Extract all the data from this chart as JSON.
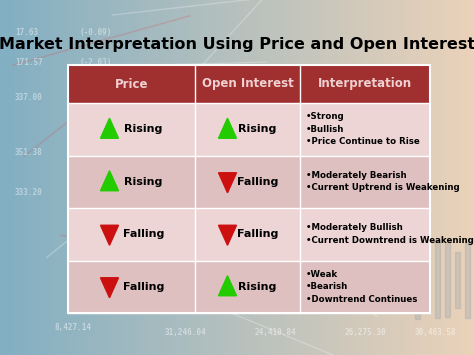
{
  "title": "Market Interpretation Using Price and Open Interest",
  "title_fontsize": 11.5,
  "title_fontweight": "bold",
  "header_bg": "#A03030",
  "header_text_color": "#F0D0D0",
  "row_bgs": [
    "#EDD5D5",
    "#DFC0C0",
    "#EDD5D5",
    "#DFC0C0"
  ],
  "col_headers": [
    "Price",
    "Open Interest",
    "Interpretation"
  ],
  "rows": [
    {
      "price_dir": "up",
      "price_color": "#22CC00",
      "oi_dir": "up",
      "oi_color": "#22CC00",
      "price_label": "Rising",
      "oi_label": "Rising",
      "interpretation": "•Strong\n•Bullish\n•Price Continue to Rise"
    },
    {
      "price_dir": "up",
      "price_color": "#22CC00",
      "oi_dir": "down",
      "oi_color": "#CC1010",
      "price_label": "Rising",
      "oi_label": "Falling",
      "interpretation": "•Moderately Bearish\n•Current Uptrend is Weakening"
    },
    {
      "price_dir": "down",
      "price_color": "#CC1010",
      "oi_dir": "down",
      "oi_color": "#CC1010",
      "price_label": "Falling",
      "oi_label": "Falling",
      "interpretation": "•Moderately Bullish\n•Current Downtrend is Weakening"
    },
    {
      "price_dir": "down",
      "price_color": "#CC1010",
      "oi_dir": "up",
      "oi_color": "#22CC00",
      "price_label": "Falling",
      "oi_label": "Rising",
      "interpretation": "•Weak\n•Bearish\n•Downtrend Continues"
    }
  ],
  "bg_left_color": "#8ab0c0",
  "bg_right_color": "#e8d0c0",
  "fig_width": 4.74,
  "fig_height": 3.55,
  "dpi": 100
}
